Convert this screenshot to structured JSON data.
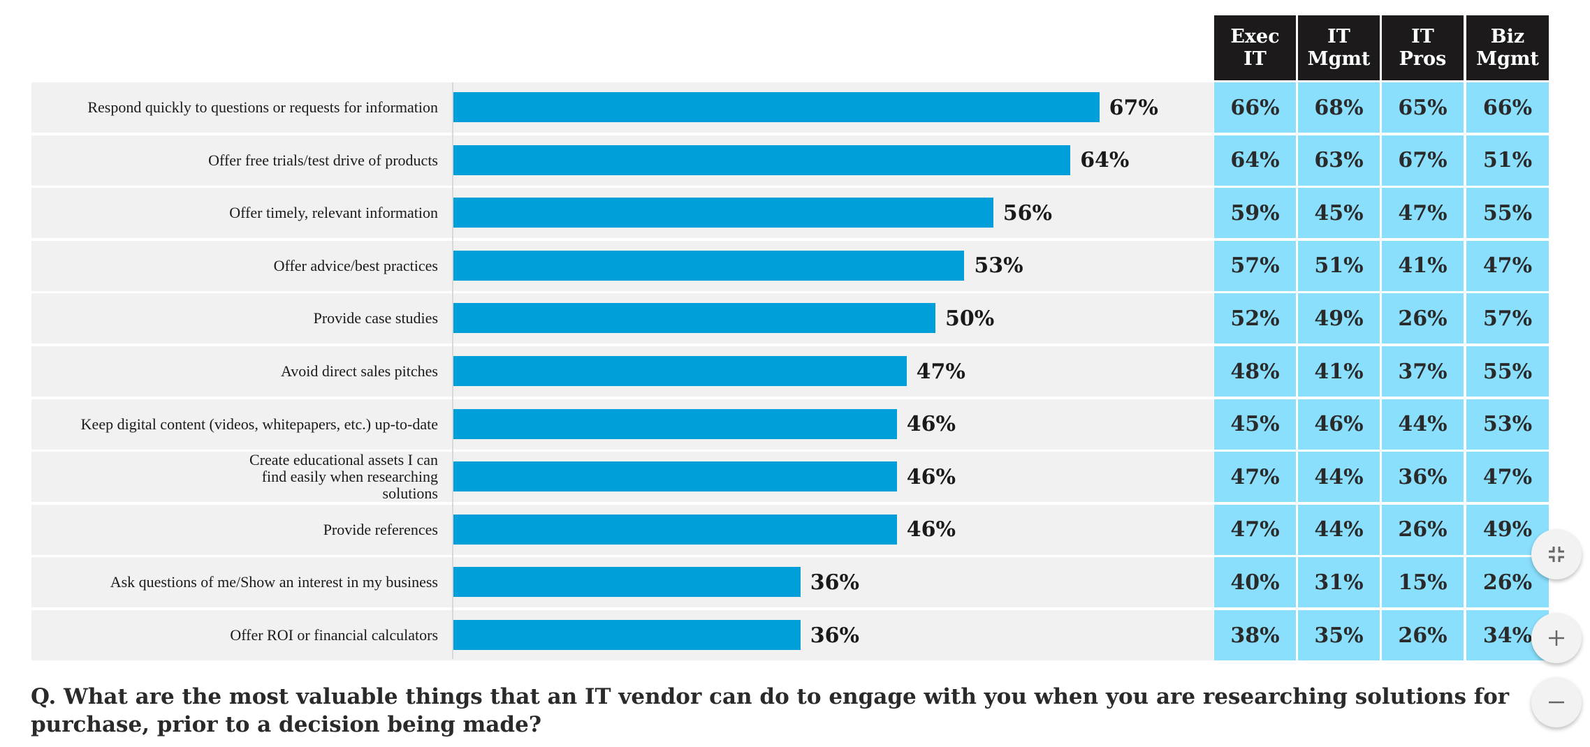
{
  "chart_data": {
    "type": "bar",
    "orientation": "horizontal",
    "title": "",
    "xlabel": "",
    "ylabel": "",
    "xlim": [
      0,
      100
    ],
    "grid": false,
    "value_suffix": "%",
    "categories": [
      "Respond quickly to questions or requests for information",
      "Offer free trials/test drive of products",
      "Offer timely, relevant information",
      "Offer advice/best practices",
      "Provide case studies",
      "Avoid direct sales pitches",
      "Keep digital content (videos, whitepapers, etc.) up-to-date",
      "Create educational assets I can find easily when researching solutions",
      "Provide references",
      "Ask questions of me/Show an interest in my business",
      "Offer ROI or financial calculators"
    ],
    "values": [
      67,
      64,
      56,
      53,
      50,
      47,
      46,
      46,
      46,
      36,
      36
    ],
    "table": {
      "columns": [
        "Exec IT",
        "IT Mgmt",
        "IT Pros",
        "Biz Mgmt"
      ],
      "rows": [
        [
          66,
          68,
          65,
          66
        ],
        [
          64,
          63,
          67,
          51
        ],
        [
          59,
          45,
          47,
          55
        ],
        [
          57,
          51,
          41,
          47
        ],
        [
          52,
          49,
          26,
          57
        ],
        [
          48,
          41,
          37,
          55
        ],
        [
          45,
          46,
          44,
          53
        ],
        [
          47,
          44,
          36,
          47
        ],
        [
          47,
          44,
          26,
          49
        ],
        [
          40,
          31,
          15,
          26
        ],
        [
          38,
          35,
          26,
          34
        ]
      ]
    },
    "colors": {
      "bar": "#009fda",
      "table_cell": "#8adffc",
      "table_header": "#1c1a1a",
      "row_bg": "#f1f1f1"
    }
  },
  "header_columns": [
    {
      "line1": "Exec",
      "line2": "IT"
    },
    {
      "line1": "IT",
      "line2": "Mgmt"
    },
    {
      "line1": "IT",
      "line2": "Pros"
    },
    {
      "line1": "Biz",
      "line2": "Mgmt"
    }
  ],
  "question": "Q. What are the most valuable things that an IT vendor can do to engage with you when you are researching solutions for purchase, prior to a decision being made?",
  "controls": {
    "collapse_icon": "collapse-icon",
    "zoom_in_icon": "plus-icon",
    "zoom_out_icon": "minus-icon"
  }
}
